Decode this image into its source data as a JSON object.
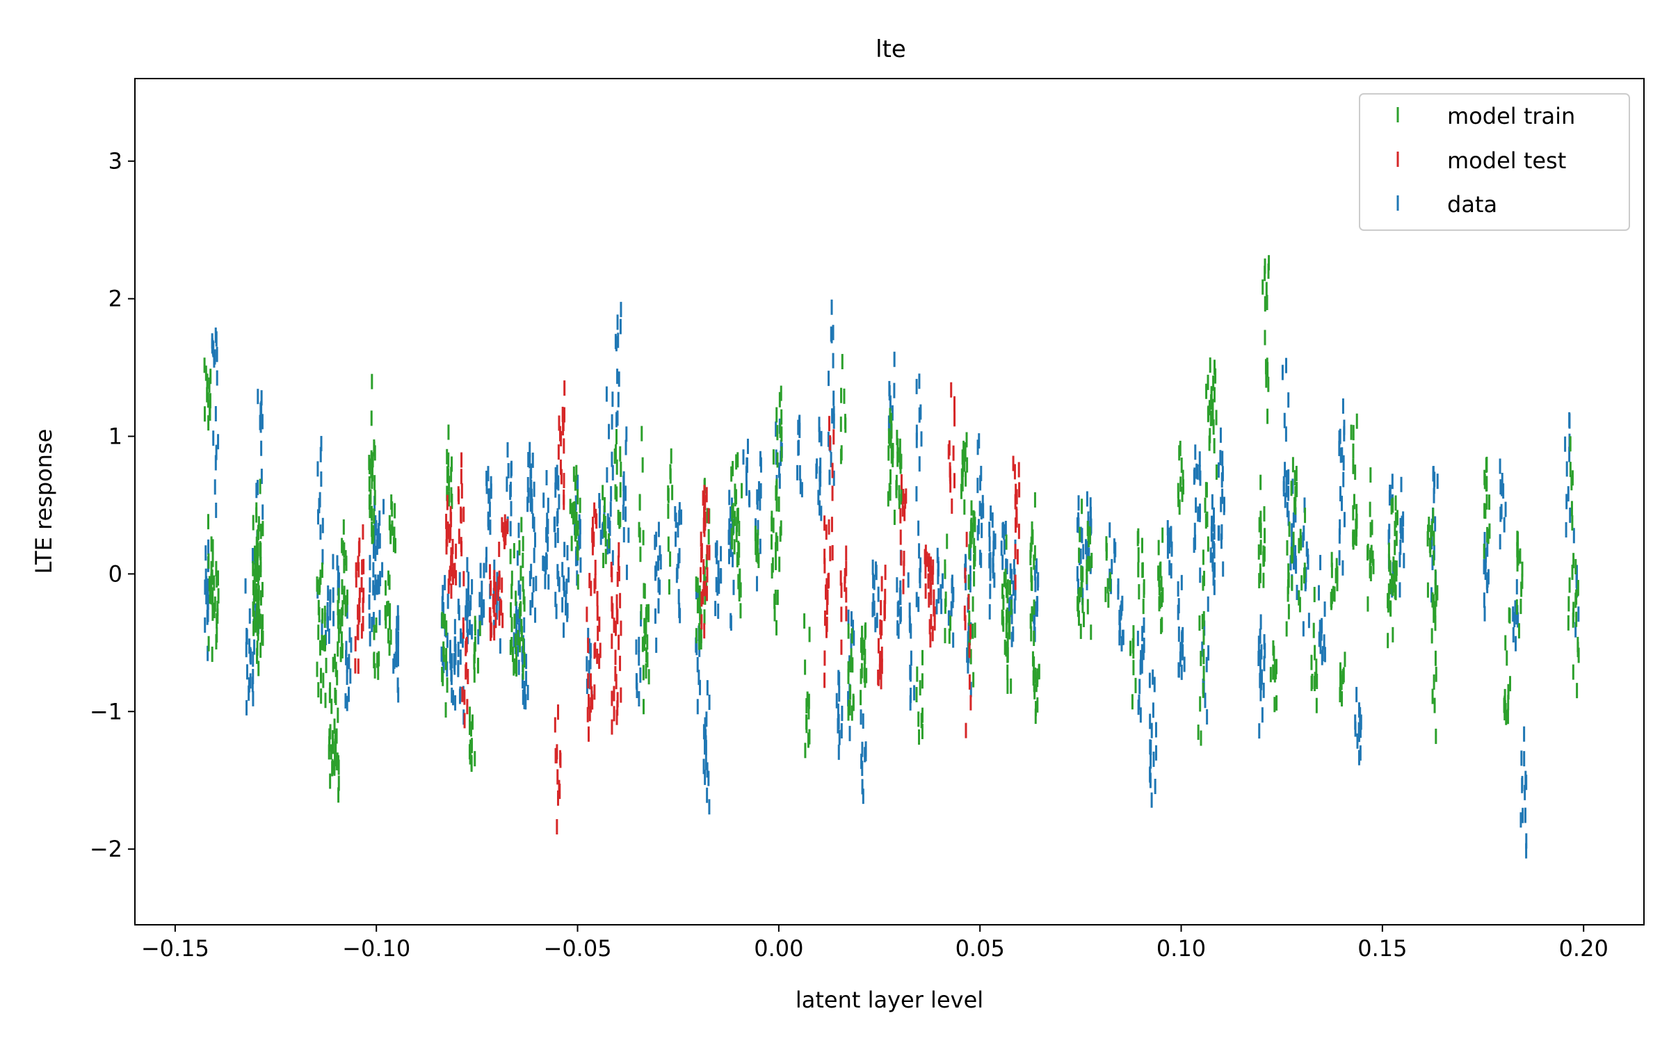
{
  "chart_data": {
    "type": "scatter",
    "title": "lte",
    "xlabel": "latent layer level",
    "ylabel": "LTE response",
    "xlim": [
      -0.16,
      0.215
    ],
    "ylim": [
      -2.55,
      3.6
    ],
    "xticks": [
      -0.15,
      -0.1,
      -0.05,
      0.0,
      0.05,
      0.1,
      0.15,
      0.2
    ],
    "xtick_labels": [
      "−0.15",
      "−0.10",
      "−0.05",
      "0.00",
      "0.05",
      "0.10",
      "0.15",
      "0.20"
    ],
    "yticks": [
      -2,
      -1,
      0,
      1,
      2,
      3
    ],
    "ytick_labels": [
      "−2",
      "−1",
      "0",
      "1",
      "2",
      "3"
    ],
    "marker": "vertical tick",
    "grid": false,
    "legend_position": "top-right",
    "series": [
      {
        "name": "model train",
        "color": "#2ca02c",
        "x": [
          -0.142,
          -0.141,
          -0.14,
          -0.13,
          -0.13,
          -0.129,
          -0.129,
          -0.114,
          -0.113,
          -0.111,
          -0.11,
          -0.109,
          -0.108,
          -0.101,
          -0.101,
          -0.1,
          -0.097,
          -0.096,
          -0.083,
          -0.082,
          -0.076,
          -0.075,
          -0.066,
          -0.064,
          -0.051,
          -0.05,
          -0.043,
          -0.04,
          -0.034,
          -0.033,
          -0.027,
          -0.02,
          -0.018,
          -0.011,
          -0.01,
          -0.005,
          -0.001,
          0.0,
          0.007,
          0.016,
          0.018,
          0.021,
          0.028,
          0.03,
          0.035,
          0.042,
          0.046,
          0.048,
          0.048,
          0.057,
          0.056,
          0.063,
          0.064,
          0.075,
          0.077,
          0.082,
          0.088,
          0.09,
          0.095,
          0.1,
          0.105,
          0.106,
          0.107,
          0.108,
          0.12,
          0.121,
          0.123,
          0.127,
          0.128,
          0.13,
          0.133,
          0.138,
          0.14,
          0.143,
          0.147,
          0.152,
          0.153,
          0.162,
          0.163,
          0.176,
          0.181,
          0.184,
          0.197,
          0.198
        ]
      },
      {
        "name": "model test",
        "color": "#d62728",
        "x": [
          -0.105,
          -0.104,
          -0.082,
          -0.081,
          -0.079,
          -0.078,
          -0.071,
          -0.069,
          -0.068,
          -0.055,
          -0.054,
          -0.047,
          -0.046,
          -0.045,
          -0.041,
          -0.04,
          -0.019,
          -0.018,
          0.012,
          0.013,
          0.016,
          0.025,
          0.026,
          0.031,
          0.037,
          0.038,
          0.043,
          0.047,
          0.059
        ]
      },
      {
        "name": "data",
        "color": "#1f77b4",
        "x": [
          -0.142,
          -0.14,
          -0.132,
          -0.131,
          -0.13,
          -0.129,
          -0.114,
          -0.112,
          -0.11,
          -0.107,
          -0.101,
          -0.1,
          -0.099,
          -0.095,
          -0.083,
          -0.081,
          -0.079,
          -0.077,
          -0.074,
          -0.072,
          -0.07,
          -0.067,
          -0.065,
          -0.063,
          -0.062,
          -0.061,
          -0.058,
          -0.055,
          -0.053,
          -0.05,
          -0.047,
          -0.044,
          -0.042,
          -0.04,
          -0.038,
          -0.035,
          -0.03,
          -0.025,
          -0.02,
          -0.018,
          -0.015,
          -0.012,
          -0.008,
          -0.005,
          0.0,
          0.005,
          0.01,
          0.013,
          0.015,
          0.018,
          0.021,
          0.024,
          0.028,
          0.03,
          0.033,
          0.035,
          0.04,
          0.043,
          0.047,
          0.05,
          0.053,
          0.056,
          0.058,
          0.064,
          0.075,
          0.077,
          0.083,
          0.085,
          0.09,
          0.093,
          0.097,
          0.1,
          0.104,
          0.106,
          0.108,
          0.11,
          0.12,
          0.126,
          0.128,
          0.131,
          0.135,
          0.14,
          0.144,
          0.152,
          0.155,
          0.163,
          0.176,
          0.18,
          0.183,
          0.185,
          0.196,
          0.198
        ]
      }
    ]
  },
  "legend": [
    {
      "label": "model train",
      "color": "#2ca02c"
    },
    {
      "label": "model test",
      "color": "#d62728"
    },
    {
      "label": "data",
      "color": "#1f77b4"
    }
  ]
}
